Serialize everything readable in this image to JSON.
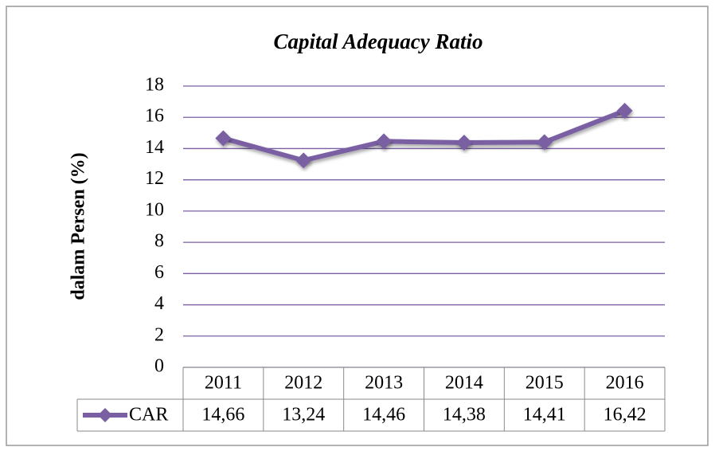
{
  "chart_data": {
    "type": "line",
    "title": "Capital Adequacy Ratio",
    "y_label": "dalam Persen (%)",
    "categories": [
      "2011",
      "2012",
      "2013",
      "2014",
      "2015",
      "2016"
    ],
    "series": [
      {
        "name": "CAR",
        "color": "#7a5fa3",
        "values": [
          14.66,
          13.24,
          14.46,
          14.38,
          14.41,
          16.42
        ],
        "value_labels": [
          "14,66",
          "13,24",
          "14,46",
          "14,38",
          "14,41",
          "16,42"
        ]
      }
    ],
    "ylim": [
      0,
      18
    ],
    "yticks": [
      0,
      2,
      4,
      6,
      8,
      10,
      12,
      14,
      16,
      18
    ],
    "grid": true,
    "data_table": true
  }
}
